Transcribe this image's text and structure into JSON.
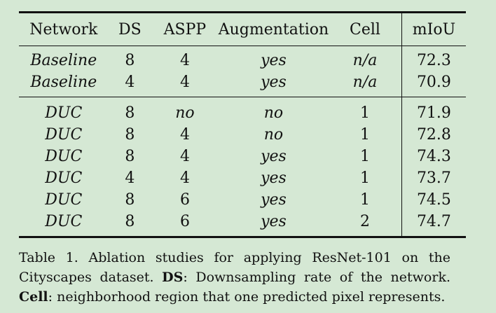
{
  "table": {
    "headers": {
      "network": "Network",
      "ds": "DS",
      "aspp": "ASPP",
      "augmentation": "Augmentation",
      "cell": "Cell",
      "miou": "mIoU"
    },
    "group1": [
      {
        "network": "Baseline",
        "ds": "8",
        "aspp": "4",
        "augmentation": "yes",
        "cell": "n/a",
        "miou": "72.3"
      },
      {
        "network": "Baseline",
        "ds": "4",
        "aspp": "4",
        "augmentation": "yes",
        "cell": "n/a",
        "miou": "70.9"
      }
    ],
    "group2": [
      {
        "network": "DUC",
        "ds": "8",
        "aspp": "no",
        "augmentation": "no",
        "cell": "1",
        "miou": "71.9"
      },
      {
        "network": "DUC",
        "ds": "8",
        "aspp": "4",
        "augmentation": "no",
        "cell": "1",
        "miou": "72.8"
      },
      {
        "network": "DUC",
        "ds": "8",
        "aspp": "4",
        "augmentation": "yes",
        "cell": "1",
        "miou": "74.3"
      },
      {
        "network": "DUC",
        "ds": "4",
        "aspp": "4",
        "augmentation": "yes",
        "cell": "1",
        "miou": "73.7"
      },
      {
        "network": "DUC",
        "ds": "8",
        "aspp": "6",
        "augmentation": "yes",
        "cell": "1",
        "miou": "74.5"
      },
      {
        "network": "DUC",
        "ds": "8",
        "aspp": "6",
        "augmentation": "yes",
        "cell": "2",
        "miou": "74.7"
      }
    ]
  },
  "caption": {
    "label": "Table 1.",
    "text1": " Ablation studies for applying ResNet-101 on the Cityscapes dataset. ",
    "term1": "DS",
    "text2": ": Downsampling rate of the network. ",
    "term2": "Cell",
    "text3": ": neighborhood region that one predicted pixel represents."
  },
  "colors": {
    "background": "#d5e8d4",
    "text": "#111111"
  }
}
